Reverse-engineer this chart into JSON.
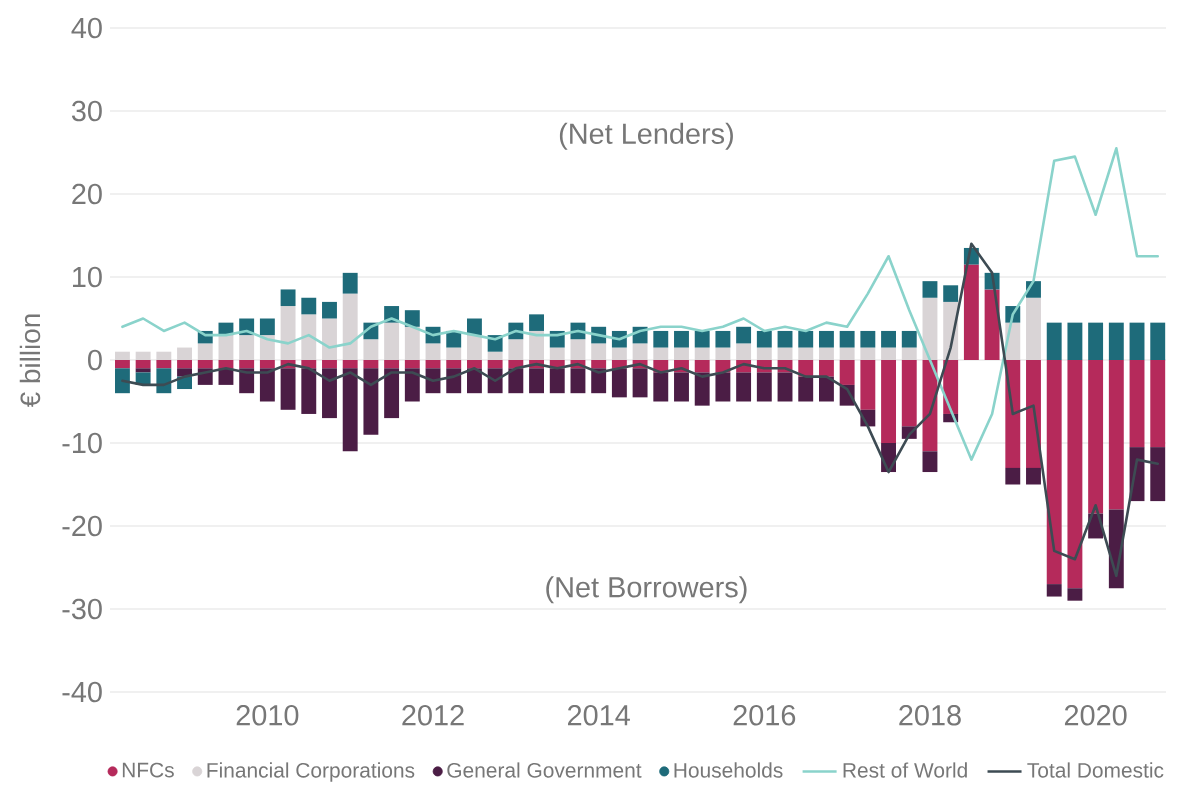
{
  "chart_data": {
    "type": "bar",
    "stacked": true,
    "ylabel": "€ billion",
    "x": [
      2008.25,
      2008.5,
      2008.75,
      2009,
      2009.25,
      2009.5,
      2009.75,
      2010,
      2010.25,
      2010.5,
      2010.75,
      2011,
      2011.25,
      2011.5,
      2011.75,
      2012,
      2012.25,
      2012.5,
      2012.75,
      2013,
      2013.25,
      2013.5,
      2013.75,
      2014,
      2014.25,
      2014.5,
      2014.75,
      2015,
      2015.25,
      2015.5,
      2015.75,
      2016,
      2016.25,
      2016.5,
      2016.75,
      2017,
      2017.25,
      2017.5,
      2017.75,
      2018,
      2018.25,
      2018.5,
      2018.75,
      2019,
      2019.25,
      2019.5,
      2019.75,
      2020,
      2020.25,
      2020.5,
      2020.75
    ],
    "xlim": [
      2008.1,
      2020.85
    ],
    "xticks": [
      2010,
      2012,
      2014,
      2016,
      2018,
      2020
    ],
    "ylim": [
      -40,
      40
    ],
    "yticks": [
      -40,
      -30,
      -20,
      -10,
      0,
      10,
      20,
      30,
      40
    ],
    "grid": "y",
    "legend": "bottom",
    "annotations": [
      "(Net Lenders)",
      "(Net Borrowers)"
    ],
    "series": [
      {
        "name": "NFCs",
        "color": "#b52a5b",
        "values": [
          -1,
          -1,
          -1,
          -1,
          -1,
          -1,
          -1,
          -1,
          -1,
          -1,
          -1,
          -1,
          -1,
          -1,
          -1,
          -1,
          -1,
          -1,
          -1,
          -1,
          -1,
          -1,
          -1,
          -1,
          -1,
          -1,
          -1.5,
          -1.5,
          -1.5,
          -1.5,
          -1.5,
          -1.5,
          -1.5,
          -2,
          -2,
          -3,
          -6,
          -10,
          -8,
          -11,
          -6.5,
          11.5,
          8.5,
          -13,
          -13,
          -27,
          -27.5,
          -18.5,
          -18,
          -10.5,
          -10.5
        ]
      },
      {
        "name": "Financial Corporations",
        "color": "#d9d4d6",
        "values": [
          1,
          1,
          1,
          1.5,
          2,
          3,
          3,
          3,
          6.5,
          5.5,
          5,
          8,
          2.5,
          4.5,
          4,
          2,
          1.5,
          3,
          1,
          2.5,
          3.5,
          1.5,
          2.5,
          2,
          1.5,
          2,
          1.5,
          1.5,
          1.5,
          1.5,
          2,
          1.5,
          1.5,
          1.5,
          1.5,
          1.5,
          1.5,
          1.5,
          1.5,
          7.5,
          7,
          0,
          0,
          4.5,
          7.5,
          0,
          0,
          0,
          0,
          0,
          0
        ]
      },
      {
        "name": "General Government",
        "color": "#4b1d45",
        "values": [
          0,
          -0.5,
          0,
          -1,
          -2,
          -2,
          -3,
          -4,
          -5,
          -5.5,
          -6,
          -10,
          -8,
          -6,
          -4,
          -3,
          -3,
          -3,
          -3,
          -3,
          -3,
          -3,
          -3,
          -3,
          -3.5,
          -3.5,
          -3.5,
          -3.5,
          -4,
          -3.5,
          -3.5,
          -3.5,
          -3.5,
          -3,
          -3,
          -2.5,
          -2,
          -3.5,
          -1.5,
          -2.5,
          -1,
          0,
          0,
          -2,
          -2,
          -1.5,
          -1.5,
          -3,
          -9.5,
          -6.5,
          -6.5
        ]
      },
      {
        "name": "Households",
        "color": "#1e6b7a",
        "values": [
          -3,
          -1.5,
          -3,
          -1.5,
          1.5,
          1.5,
          2,
          2,
          2,
          2,
          2,
          2.5,
          2,
          2,
          2,
          2,
          2,
          2,
          2,
          2,
          2,
          2,
          2,
          2,
          2,
          2,
          2,
          2,
          2,
          2,
          2,
          2,
          2,
          2,
          2,
          2,
          2,
          2,
          2,
          2,
          2,
          2,
          2,
          2,
          2,
          4.5,
          4.5,
          4.5,
          4.5,
          4.5,
          4.5
        ]
      },
      {
        "name": "Rest of World",
        "type": "line",
        "color": "#8ad3cb",
        "values": [
          4,
          5,
          3.5,
          4.5,
          3,
          3,
          3.5,
          2.5,
          2,
          3,
          1.5,
          2,
          4,
          5,
          4,
          3,
          3.5,
          3,
          2.5,
          3.5,
          3,
          3,
          3.5,
          3,
          2.5,
          3.5,
          4,
          4,
          3.5,
          4,
          5,
          3.5,
          4,
          3.5,
          4.5,
          4,
          8,
          12.5,
          6,
          0,
          -6,
          -12,
          -6.5,
          5.5,
          9.5,
          24,
          24.5,
          17.5,
          25.5,
          12.5,
          12.5
        ]
      },
      {
        "name": "Total Domestic",
        "type": "line",
        "color": "#3d4b53",
        "values": [
          -2.5,
          -3,
          -3,
          -2,
          -1.5,
          -1,
          -1.5,
          -1.5,
          -0.5,
          -1,
          -2.5,
          -1.5,
          -3,
          -1.5,
          -1.5,
          -2.5,
          -2,
          -1,
          -2.5,
          -1,
          -0.5,
          -1,
          -0.5,
          -1.5,
          -1,
          -0.5,
          -1.5,
          -1,
          -2,
          -1.5,
          -0.5,
          -1,
          -1,
          -2,
          -2,
          -3.5,
          -8,
          -13.5,
          -9,
          -6.5,
          1.5,
          14,
          10.5,
          -6.5,
          -5.5,
          -23,
          -24,
          -17.5,
          -26,
          -12,
          -12.5
        ]
      }
    ]
  }
}
